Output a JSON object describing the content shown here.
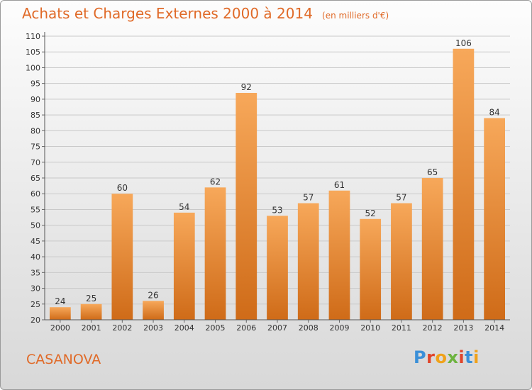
{
  "title": "Achats et Charges Externes 2000 à 2014",
  "subtitle": "(en milliers d'€)",
  "commune": "CASANOVA",
  "logo": {
    "text": "Proxiti",
    "colors": [
      "#3a8fd8",
      "#e0442a",
      "#f0a21a",
      "#6db33f",
      "#e0442a",
      "#3a8fd8",
      "#f0a21a"
    ]
  },
  "colors": {
    "bar_top": "#f7a85a",
    "bar_bottom": "#cf6b18",
    "accent": "#e06a28"
  },
  "chart_data": {
    "type": "bar",
    "categories": [
      "2000",
      "2001",
      "2002",
      "2003",
      "2004",
      "2005",
      "2006",
      "2007",
      "2008",
      "2009",
      "2010",
      "2011",
      "2012",
      "2013",
      "2014"
    ],
    "values": [
      24,
      25,
      60,
      26,
      54,
      62,
      92,
      53,
      57,
      61,
      52,
      57,
      65,
      106,
      84
    ],
    "ylim": [
      20,
      110
    ],
    "yticks": [
      20,
      25,
      30,
      35,
      40,
      45,
      50,
      55,
      60,
      65,
      70,
      75,
      80,
      85,
      90,
      95,
      100,
      105,
      110
    ],
    "grid": true
  }
}
